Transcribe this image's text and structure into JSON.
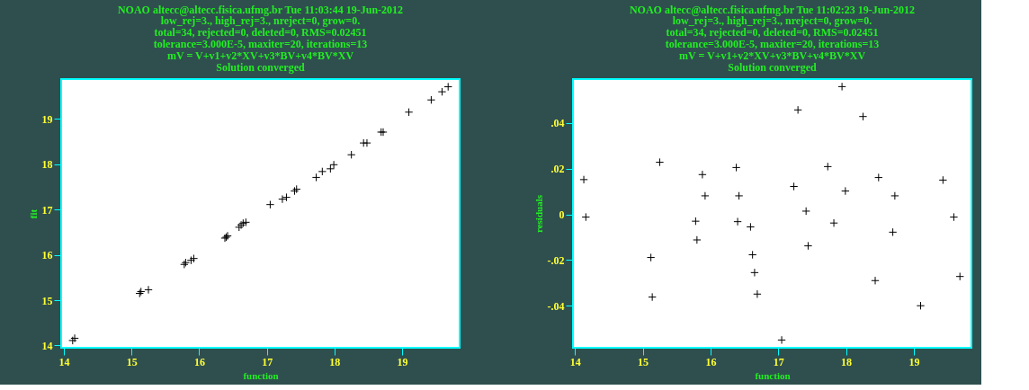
{
  "chart_data": [
    {
      "type": "scatter",
      "title": "NOAO altecc@altecc.fisica.ufmg.br Tue 11:03:44 19-Jun-2012",
      "subtitle": "low_rej=3., high_rej=3., nreject=0, grow=0.\ntotal=34, rejected=0, deleted=0, RMS=0.02451\ntolerance=3.000E-5, maxiter=20, iterations=13\nmV = V+v1+v2*XV+v3*BV+v4*BV*XV\nSolution converged",
      "xlabel": "function",
      "ylabel": "fit",
      "marker": "cross",
      "grid": false,
      "x": [
        14.13,
        14.16,
        15.12,
        15.14,
        15.25,
        15.78,
        15.8,
        15.88,
        15.92,
        16.38,
        16.4,
        16.42,
        16.59,
        16.62,
        16.65,
        16.69,
        17.05,
        17.23,
        17.29,
        17.41,
        17.44,
        17.73,
        17.82,
        17.94,
        17.99,
        18.25,
        18.43,
        18.48,
        18.69,
        18.72,
        19.1,
        19.43,
        19.59,
        19.68
      ],
      "series": [
        {
          "color": "#000000",
          "values": [
            14.11,
            14.16,
            15.15,
            15.19,
            15.23,
            15.79,
            15.83,
            15.88,
            15.92,
            16.37,
            16.39,
            16.42,
            16.61,
            16.66,
            16.7,
            16.72,
            17.11,
            17.23,
            17.27,
            17.41,
            17.45,
            17.71,
            17.84,
            17.9,
            17.99,
            18.21,
            18.47,
            18.47,
            18.71,
            18.71,
            19.15,
            19.42,
            19.6,
            19.71
          ]
        }
      ],
      "xlim": [
        13.96,
        19.85
      ],
      "xticks": [
        14,
        15,
        16,
        17,
        18,
        19
      ],
      "ylim": [
        13.95,
        19.88
      ],
      "yticks": [
        14,
        15,
        16,
        17,
        18,
        19
      ]
    },
    {
      "type": "scatter",
      "title": "NOAO altecc@altecc.fisica.ufmg.br Tue 11:02:23 19-Jun-2012",
      "subtitle": "low_rej=3., high_rej=3., nreject=0, grow=0.\ntotal=34, rejected=0, deleted=0, RMS=0.02451\ntolerance=3.000E-5, maxiter=20, iterations=13\nmV = V+v1+v2*XV+v3*BV+v4*BV*XV\nSolution converged",
      "xlabel": "function",
      "ylabel": "residuals",
      "marker": "cross",
      "grid": false,
      "x": [
        14.13,
        14.16,
        15.25,
        15.12,
        15.14,
        15.88,
        15.92,
        15.78,
        15.8,
        16.38,
        16.42,
        16.4,
        16.59,
        16.62,
        16.65,
        16.69,
        17.05,
        17.94,
        17.29,
        18.25,
        17.73,
        18.48,
        19.43,
        17.23,
        17.99,
        18.72,
        17.41,
        19.59,
        17.82,
        18.69,
        17.44,
        18.43,
        19.68,
        19.1
      ],
      "series": [
        {
          "color": "#000000",
          "values": [
            0.0152,
            -0.0012,
            0.0228,
            -0.0189,
            -0.0362,
            0.0174,
            0.0081,
            -0.003,
            -0.0112,
            0.0205,
            0.0081,
            -0.0032,
            -0.0055,
            -0.0177,
            -0.0255,
            -0.0349,
            -0.055,
            0.0559,
            0.0457,
            0.0428,
            0.0209,
            0.0161,
            0.015,
            0.0122,
            0.0102,
            0.0081,
            0.0014,
            -0.0012,
            -0.0038,
            -0.0078,
            -0.0138,
            -0.029,
            -0.0272,
            -0.04
          ]
        }
      ],
      "xlim": [
        13.97,
        19.85
      ],
      "xticks": [
        14,
        15,
        16,
        17,
        18,
        19
      ],
      "ylim": [
        -0.0584,
        0.0592
      ],
      "yticks": [
        {
          "value": -0.04,
          "label": "-.04"
        },
        {
          "value": -0.02,
          "label": "-.02"
        },
        0,
        {
          "value": 0.02,
          "label": ".02"
        },
        {
          "value": 0.04,
          "label": ".04"
        }
      ]
    }
  ]
}
